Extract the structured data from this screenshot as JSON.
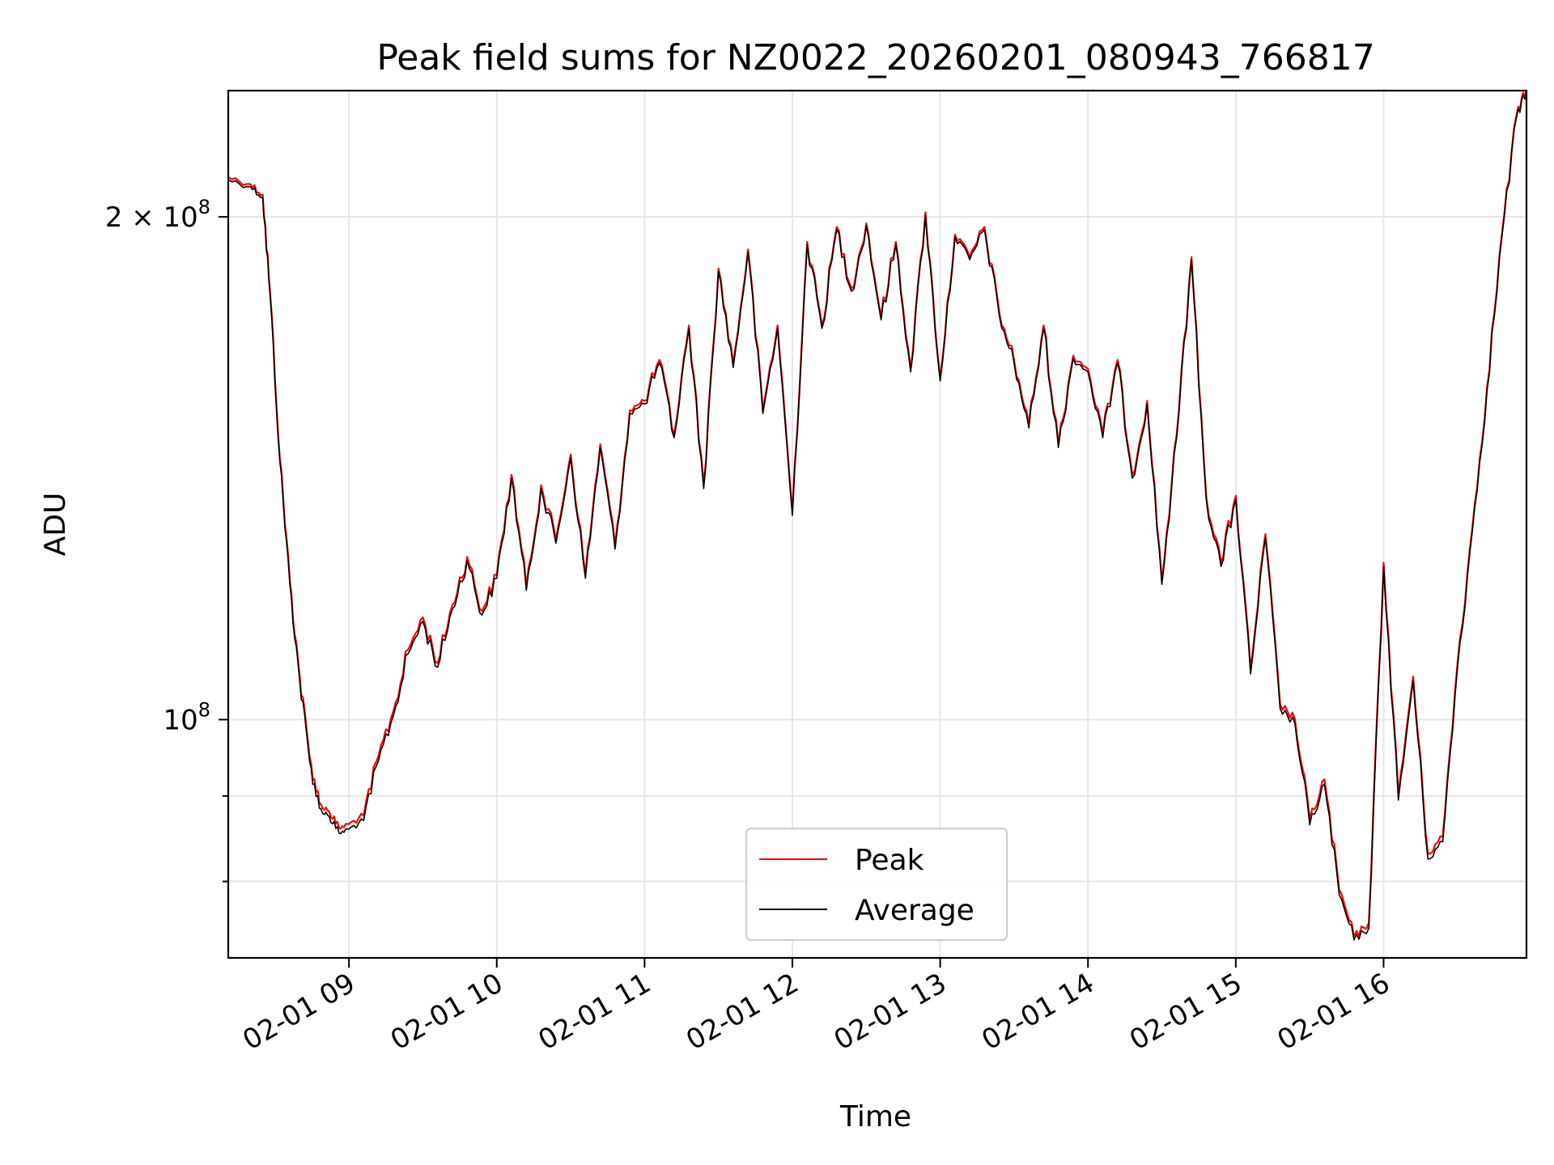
{
  "chart_data": {
    "type": "line",
    "title": "Peak field sums for NZ0022_20260201_080943_766817",
    "xlabel": "Time",
    "ylabel": "ADU",
    "y_scale": "log",
    "ylim": [
      72000000,
      238000000
    ],
    "xlim": [
      "2026-02-01 08:11",
      "2026-02-01 16:58"
    ],
    "x_ticks": [
      {
        "time": "2026-02-01 09:00",
        "label": "02-01 09"
      },
      {
        "time": "2026-02-01 10:00",
        "label": "02-01 10"
      },
      {
        "time": "2026-02-01 11:00",
        "label": "02-01 11"
      },
      {
        "time": "2026-02-01 12:00",
        "label": "02-01 12"
      },
      {
        "time": "2026-02-01 13:00",
        "label": "02-01 13"
      },
      {
        "time": "2026-02-01 14:00",
        "label": "02-01 14"
      },
      {
        "time": "2026-02-01 15:00",
        "label": "02-01 15"
      },
      {
        "time": "2026-02-01 16:00",
        "label": "02-01 16"
      }
    ],
    "y_major_ticks": [
      {
        "value": 100000000,
        "base": "10",
        "exp": "8",
        "coef": ""
      },
      {
        "value": 200000000,
        "base": "10",
        "exp": "8",
        "coef": "2"
      }
    ],
    "y_minor_ticks": [
      80000000,
      90000000
    ],
    "times_sign": "×",
    "grid": true,
    "legend_position": "lower center",
    "series": [
      {
        "name": "Peak",
        "color": "#ff0000",
        "x": [
          "2026-02-01 08:11",
          "2026-02-01 08:20",
          "2026-02-01 08:25",
          "2026-02-01 08:28",
          "2026-02-01 08:32",
          "2026-02-01 08:36",
          "2026-02-01 08:40",
          "2026-02-01 08:44",
          "2026-02-01 08:48",
          "2026-02-01 08:52",
          "2026-02-01 08:56",
          "2026-02-01 09:00",
          "2026-02-01 09:06",
          "2026-02-01 09:12",
          "2026-02-01 09:18",
          "2026-02-01 09:24",
          "2026-02-01 09:30",
          "2026-02-01 09:36",
          "2026-02-01 09:42",
          "2026-02-01 09:48",
          "2026-02-01 09:54",
          "2026-02-01 10:00",
          "2026-02-01 10:06",
          "2026-02-01 10:12",
          "2026-02-01 10:18",
          "2026-02-01 10:24",
          "2026-02-01 10:30",
          "2026-02-01 10:36",
          "2026-02-01 10:42",
          "2026-02-01 10:48",
          "2026-02-01 10:54",
          "2026-02-01 11:00",
          "2026-02-01 11:06",
          "2026-02-01 11:12",
          "2026-02-01 11:18",
          "2026-02-01 11:24",
          "2026-02-01 11:30",
          "2026-02-01 11:36",
          "2026-02-01 11:42",
          "2026-02-01 11:48",
          "2026-02-01 11:54",
          "2026-02-01 12:00",
          "2026-02-01 12:06",
          "2026-02-01 12:12",
          "2026-02-01 12:18",
          "2026-02-01 12:24",
          "2026-02-01 12:30",
          "2026-02-01 12:36",
          "2026-02-01 12:42",
          "2026-02-01 12:48",
          "2026-02-01 12:54",
          "2026-02-01 13:00",
          "2026-02-01 13:06",
          "2026-02-01 13:12",
          "2026-02-01 13:18",
          "2026-02-01 13:24",
          "2026-02-01 13:30",
          "2026-02-01 13:36",
          "2026-02-01 13:42",
          "2026-02-01 13:48",
          "2026-02-01 13:54",
          "2026-02-01 14:00",
          "2026-02-01 14:06",
          "2026-02-01 14:12",
          "2026-02-01 14:18",
          "2026-02-01 14:24",
          "2026-02-01 14:30",
          "2026-02-01 14:36",
          "2026-02-01 14:42",
          "2026-02-01 14:48",
          "2026-02-01 14:54",
          "2026-02-01 15:00",
          "2026-02-01 15:06",
          "2026-02-01 15:12",
          "2026-02-01 15:18",
          "2026-02-01 15:24",
          "2026-02-01 15:30",
          "2026-02-01 15:36",
          "2026-02-01 15:42",
          "2026-02-01 15:48",
          "2026-02-01 15:54",
          "2026-02-01 16:00",
          "2026-02-01 16:06",
          "2026-02-01 16:12",
          "2026-02-01 16:18",
          "2026-02-01 16:24",
          "2026-02-01 16:30",
          "2026-02-01 16:36",
          "2026-02-01 16:42",
          "2026-02-01 16:48",
          "2026-02-01 16:54",
          "2026-02-01 16:58"
        ],
        "values": [
          211000000,
          209000000,
          206000000,
          180000000,
          143000000,
          121000000,
          106000000,
          95000000,
          89000000,
          88000000,
          86000000,
          86500000,
          87500000,
          95000000,
          101000000,
          110000000,
          115000000,
          108000000,
          117000000,
          125000000,
          116000000,
          122000000,
          140000000,
          120000000,
          138000000,
          128000000,
          144000000,
          122000000,
          146000000,
          127000000,
          153000000,
          155000000,
          164000000,
          148000000,
          172000000,
          138000000,
          186000000,
          163000000,
          191000000,
          153000000,
          172000000,
          133000000,
          193000000,
          172000000,
          197000000,
          181000000,
          198000000,
          174000000,
          193000000,
          162000000,
          201000000,
          160000000,
          195000000,
          189000000,
          197000000,
          175000000,
          164000000,
          150000000,
          172000000,
          146000000,
          165000000,
          162000000,
          148000000,
          164000000,
          140000000,
          155000000,
          121000000,
          148000000,
          189000000,
          136000000,
          124000000,
          136000000,
          107000000,
          129000000,
          102000000,
          100000000,
          87000000,
          92000000,
          79000000,
          74000000,
          75500000,
          124000000,
          90000000,
          106000000,
          83000000,
          85000000,
          108000000,
          130000000,
          158000000,
          195000000,
          230000000,
          238000000
        ]
      },
      {
        "name": "Average",
        "color": "#000000",
        "x": [
          "2026-02-01 08:11",
          "2026-02-01 08:20",
          "2026-02-01 08:25",
          "2026-02-01 08:28",
          "2026-02-01 08:32",
          "2026-02-01 08:36",
          "2026-02-01 08:40",
          "2026-02-01 08:44",
          "2026-02-01 08:48",
          "2026-02-01 08:52",
          "2026-02-01 08:56",
          "2026-02-01 09:00",
          "2026-02-01 09:06",
          "2026-02-01 09:12",
          "2026-02-01 09:18",
          "2026-02-01 09:24",
          "2026-02-01 09:30",
          "2026-02-01 09:36",
          "2026-02-01 09:42",
          "2026-02-01 09:48",
          "2026-02-01 09:54",
          "2026-02-01 10:00",
          "2026-02-01 10:06",
          "2026-02-01 10:12",
          "2026-02-01 10:18",
          "2026-02-01 10:24",
          "2026-02-01 10:30",
          "2026-02-01 10:36",
          "2026-02-01 10:42",
          "2026-02-01 10:48",
          "2026-02-01 10:54",
          "2026-02-01 11:00",
          "2026-02-01 11:06",
          "2026-02-01 11:12",
          "2026-02-01 11:18",
          "2026-02-01 11:24",
          "2026-02-01 11:30",
          "2026-02-01 11:36",
          "2026-02-01 11:42",
          "2026-02-01 11:48",
          "2026-02-01 11:54",
          "2026-02-01 12:00",
          "2026-02-01 12:06",
          "2026-02-01 12:12",
          "2026-02-01 12:18",
          "2026-02-01 12:24",
          "2026-02-01 12:30",
          "2026-02-01 12:36",
          "2026-02-01 12:42",
          "2026-02-01 12:48",
          "2026-02-01 12:54",
          "2026-02-01 13:00",
          "2026-02-01 13:06",
          "2026-02-01 13:12",
          "2026-02-01 13:18",
          "2026-02-01 13:24",
          "2026-02-01 13:30",
          "2026-02-01 13:36",
          "2026-02-01 13:42",
          "2026-02-01 13:48",
          "2026-02-01 13:54",
          "2026-02-01 14:00",
          "2026-02-01 14:06",
          "2026-02-01 14:12",
          "2026-02-01 14:18",
          "2026-02-01 14:24",
          "2026-02-01 14:30",
          "2026-02-01 14:36",
          "2026-02-01 14:42",
          "2026-02-01 14:48",
          "2026-02-01 14:54",
          "2026-02-01 15:00",
          "2026-02-01 15:06",
          "2026-02-01 15:12",
          "2026-02-01 15:18",
          "2026-02-01 15:24",
          "2026-02-01 15:30",
          "2026-02-01 15:36",
          "2026-02-01 15:42",
          "2026-02-01 15:48",
          "2026-02-01 15:54",
          "2026-02-01 16:00",
          "2026-02-01 16:06",
          "2026-02-01 16:12",
          "2026-02-01 16:18",
          "2026-02-01 16:24",
          "2026-02-01 16:30",
          "2026-02-01 16:36",
          "2026-02-01 16:42",
          "2026-02-01 16:48",
          "2026-02-01 16:54",
          "2026-02-01 16:58"
        ],
        "values": [
          210500000,
          208500000,
          205500000,
          179500000,
          142500000,
          120500000,
          105500000,
          94500000,
          88500000,
          87500000,
          85500000,
          86000000,
          87000000,
          94500000,
          100500000,
          109500000,
          114500000,
          107500000,
          116500000,
          124500000,
          115500000,
          121500000,
          139500000,
          119500000,
          137500000,
          127500000,
          143500000,
          121500000,
          145500000,
          126500000,
          152500000,
          154500000,
          163500000,
          147500000,
          171500000,
          137500000,
          185500000,
          162500000,
          190500000,
          152500000,
          171500000,
          132500000,
          192500000,
          171500000,
          196500000,
          180500000,
          197500000,
          173500000,
          192500000,
          161500000,
          200500000,
          159500000,
          194500000,
          188500000,
          196500000,
          174500000,
          163500000,
          149500000,
          171500000,
          145500000,
          164500000,
          161500000,
          147500000,
          163500000,
          139500000,
          154500000,
          120500000,
          147500000,
          188500000,
          135500000,
          123500000,
          135500000,
          106500000,
          128500000,
          101500000,
          99500000,
          86500000,
          91500000,
          78500000,
          73800000,
          75000000,
          123500000,
          89500000,
          105500000,
          82500000,
          84500000,
          107500000,
          129500000,
          157500000,
          194500000,
          229500000,
          237500000
        ]
      }
    ]
  }
}
